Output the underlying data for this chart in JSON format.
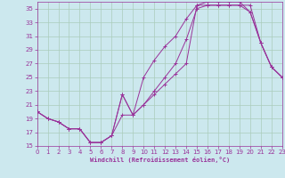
{
  "background_color": "#cce8ee",
  "grid_color": "#aaccbb",
  "line_color": "#993399",
  "xlim": [
    0,
    23
  ],
  "ylim": [
    15,
    36
  ],
  "yticks": [
    15,
    17,
    19,
    21,
    23,
    25,
    27,
    29,
    31,
    33,
    35
  ],
  "xticks": [
    0,
    1,
    2,
    3,
    4,
    5,
    6,
    7,
    8,
    9,
    10,
    11,
    12,
    13,
    14,
    15,
    16,
    17,
    18,
    19,
    20,
    21,
    22,
    23
  ],
  "xlabel": "Windchill (Refroidissement éolien,°C)",
  "curve1_x": [
    0,
    1,
    2,
    3,
    4,
    5,
    6,
    7,
    8,
    9,
    10,
    11,
    12,
    13,
    14,
    15,
    16,
    17,
    18,
    19,
    20,
    21,
    22,
    23
  ],
  "curve1_y": [
    20,
    19,
    18.5,
    17.5,
    17.5,
    15.5,
    15.5,
    16.5,
    19.5,
    19.5,
    21,
    22.5,
    24,
    25.5,
    27,
    35.5,
    35.5,
    35.5,
    35.5,
    35.5,
    35.5,
    30,
    26.5,
    25
  ],
  "curve2_x": [
    0,
    1,
    2,
    3,
    4,
    5,
    6,
    7,
    8,
    9,
    10,
    11,
    12,
    13,
    14,
    15,
    16,
    17,
    18,
    19,
    20,
    21,
    22,
    23
  ],
  "curve2_y": [
    20,
    19,
    18.5,
    17.5,
    17.5,
    15.5,
    15.5,
    16.5,
    22.5,
    19.5,
    21,
    23,
    25,
    27,
    30.5,
    35,
    35.5,
    35.5,
    35.5,
    35.5,
    34.5,
    30,
    26.5,
    25
  ],
  "curve3_x": [
    0,
    1,
    2,
    3,
    4,
    5,
    6,
    7,
    8,
    9,
    10,
    11,
    12,
    13,
    14,
    15,
    16,
    17,
    18,
    19,
    20,
    21,
    22,
    23
  ],
  "curve3_y": [
    20,
    19,
    18.5,
    17.5,
    17.5,
    15.5,
    15.5,
    16.5,
    22.5,
    19.5,
    25,
    27.5,
    29.5,
    31,
    33.5,
    35.5,
    36,
    36,
    36,
    36,
    34.5,
    30,
    26.5,
    25
  ]
}
